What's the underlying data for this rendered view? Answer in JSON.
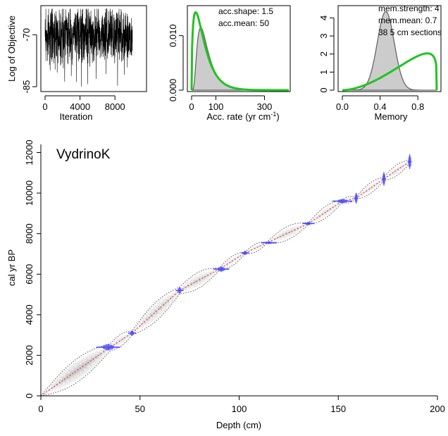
{
  "chart_data": [
    {
      "type": "line",
      "panel": "log-objective",
      "xlabel": "Iteration",
      "ylabel": "Log of Objective",
      "xlim": [
        0,
        10000
      ],
      "ylim": [
        -86,
        -62
      ],
      "x_ticks": [
        0,
        4000,
        8000
      ],
      "y_ticks": [
        -85,
        -70
      ],
      "series": [
        {
          "values_summary": "iteration trace oscillating mostly between -76 and -64 with occasional dips to -86",
          "color": "#000000"
        }
      ],
      "trace_mean": -70,
      "trace_sd": 3
    },
    {
      "type": "area",
      "panel": "accumulation-rate",
      "xlabel": "Acc. rate (yr cm",
      "xlabel_superscript": "-1",
      "xlabel_suffix": ")",
      "xlim": [
        0,
        400
      ],
      "ylim": [
        0,
        0.015
      ],
      "x_ticks": [
        0,
        100,
        300
      ],
      "x_tick_labels": [
        "0",
        "100",
        "300"
      ],
      "y_ticks": [
        0.0,
        0.01
      ],
      "y_tick_labels": [
        "0.000",
        "0.010"
      ],
      "annotations": [
        "acc.shape: 1.5",
        "acc.mean: 50"
      ],
      "prior": {
        "shape": 1.5,
        "mean": 50,
        "color": "#22c322"
      },
      "posterior": {
        "peak_x": 38,
        "peak_y": 0.0115,
        "fill": "#cccccc",
        "stroke": "#666666"
      }
    },
    {
      "type": "area",
      "panel": "memory",
      "xlabel": "Memory",
      "xlim": [
        0,
        1
      ],
      "ylim": [
        0,
        4.6
      ],
      "x_ticks": [
        0.0,
        0.4,
        0.8
      ],
      "x_tick_labels": [
        "0.0",
        "0.4",
        "0.8"
      ],
      "y_ticks": [
        0,
        1,
        2,
        3,
        4
      ],
      "y_tick_labels": [
        "0",
        "1",
        "2",
        "3",
        "4"
      ],
      "annotations": [
        "mem.strength: 4",
        "mem.mean: 0.7",
        "38 5 cm sections"
      ],
      "prior": {
        "strength": 4,
        "mean": 0.7,
        "color": "#22c322"
      },
      "posterior": {
        "peak_x": 0.46,
        "peak_y": 4.35,
        "sd": 0.09,
        "fill": "#cccccc",
        "stroke": "#666666"
      }
    },
    {
      "type": "scatter",
      "panel": "age-depth",
      "title": "VydrinoK",
      "xlabel": "Depth (cm)",
      "ylabel": "cal yr BP",
      "xlim": [
        0,
        200
      ],
      "ylim": [
        0,
        12400
      ],
      "x_ticks": [
        0,
        50,
        100,
        150,
        200
      ],
      "x_tick_labels": [
        "0",
        "50",
        "100",
        "150",
        "200"
      ],
      "y_ticks": [
        0,
        2000,
        4000,
        6000,
        8000,
        10000,
        12000
      ],
      "y_tick_labels": [
        "0",
        "2000",
        "4000",
        "6000",
        "8000",
        "10000",
        "12000"
      ],
      "model_mean": {
        "depth": [
          0,
          35,
          46,
          70,
          90,
          103,
          114,
          135,
          152,
          159,
          173,
          186
        ],
        "age": [
          0,
          2400,
          3100,
          5200,
          6250,
          7050,
          7550,
          8500,
          9600,
          9750,
          10700,
          11550
        ],
        "color": "#e04040"
      },
      "uncertainty_halfwidth": [
        0,
        450,
        250,
        420,
        150,
        120,
        90,
        110,
        150,
        120,
        220,
        200
      ],
      "dates": [
        {
          "depth": 34,
          "age": 2400,
          "age_err": 140,
          "depth_err": 6
        },
        {
          "depth": 46,
          "age": 3100,
          "age_err": 110,
          "depth_err": 2
        },
        {
          "depth": 70,
          "age": 5200,
          "age_err": 140,
          "depth_err": 2
        },
        {
          "depth": 91,
          "age": 6250,
          "age_err": 110,
          "depth_err": 4
        },
        {
          "depth": 103,
          "age": 7050,
          "age_err": 90,
          "depth_err": 2
        },
        {
          "depth": 115,
          "age": 7550,
          "age_err": 60,
          "depth_err": 4
        },
        {
          "depth": 135,
          "age": 8500,
          "age_err": 70,
          "depth_err": 3
        },
        {
          "depth": 152,
          "age": 9600,
          "age_err": 100,
          "depth_err": 5
        },
        {
          "depth": 159,
          "age": 9750,
          "age_err": 220,
          "depth_err": 1
        },
        {
          "depth": 173,
          "age": 10700,
          "age_err": 280,
          "depth_err": 1
        },
        {
          "depth": 186,
          "age": 11550,
          "age_err": 300,
          "depth_err": 1
        }
      ],
      "date_color": "#4b4bff"
    }
  ]
}
